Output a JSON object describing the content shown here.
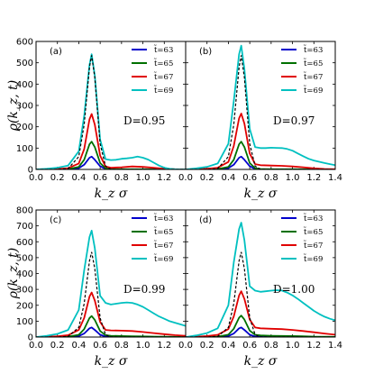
{
  "figure": {
    "ylabel": "ρ(k_z, t)",
    "xlabel": "k_z σ"
  },
  "chart_data": [
    {
      "panel": "(a)",
      "type": "line",
      "annotation": "D=0.95",
      "xlim": [
        0,
        1.4
      ],
      "ylim": [
        0,
        600
      ],
      "xticks": [
        0.0,
        0.2,
        0.4,
        0.6,
        0.8,
        1.0,
        1.2
      ],
      "yticks": [
        0,
        100,
        200,
        300,
        400,
        500,
        600
      ],
      "legend": "top-right",
      "series": [
        {
          "name": "t̃=63",
          "color": "#0000cc",
          "x": [
            0,
            0.1,
            0.2,
            0.3,
            0.4,
            0.45,
            0.5,
            0.52,
            0.55,
            0.6,
            0.65,
            0.7,
            0.8,
            0.9,
            1.0,
            1.1,
            1.2,
            1.3,
            1.4
          ],
          "values": [
            0,
            0,
            0,
            1,
            6,
            22,
            55,
            60,
            45,
            15,
            3,
            1,
            0,
            0,
            0,
            0,
            0,
            0,
            0
          ]
        },
        {
          "name": "t̃=65",
          "color": "#007000",
          "x": [
            0,
            0.1,
            0.2,
            0.3,
            0.4,
            0.45,
            0.5,
            0.52,
            0.55,
            0.6,
            0.65,
            0.7,
            0.8,
            0.9,
            1.0,
            1.1,
            1.2,
            1.3,
            1.4
          ],
          "values": [
            0,
            0,
            1,
            2,
            12,
            45,
            118,
            130,
            105,
            30,
            6,
            2,
            1,
            1,
            1,
            1,
            0,
            0,
            0
          ]
        },
        {
          "name": "t̃=67",
          "color": "#e00000",
          "x": [
            0,
            0.1,
            0.2,
            0.3,
            0.4,
            0.45,
            0.5,
            0.52,
            0.55,
            0.6,
            0.65,
            0.7,
            0.8,
            0.9,
            1.0,
            1.1,
            1.2,
            1.3,
            1.4
          ],
          "values": [
            0,
            0,
            2,
            6,
            28,
            95,
            235,
            260,
            210,
            65,
            14,
            8,
            10,
            14,
            12,
            8,
            3,
            1,
            0
          ]
        },
        {
          "name": "t̃=69",
          "color": "#00c0c0",
          "x": [
            0,
            0.1,
            0.2,
            0.3,
            0.4,
            0.45,
            0.5,
            0.52,
            0.55,
            0.6,
            0.65,
            0.7,
            0.75,
            0.8,
            0.85,
            0.9,
            0.95,
            1.0,
            1.05,
            1.1,
            1.15,
            1.2,
            1.25,
            1.3,
            1.35,
            1.4
          ],
          "values": [
            0,
            3,
            8,
            18,
            85,
            250,
            490,
            540,
            440,
            140,
            48,
            44,
            45,
            50,
            52,
            55,
            60,
            55,
            46,
            32,
            18,
            8,
            3,
            1,
            0,
            0
          ]
        }
      ],
      "reference": {
        "color": "#000000",
        "dashed": true,
        "x": [
          0,
          0.1,
          0.2,
          0.3,
          0.4,
          0.45,
          0.5,
          0.52,
          0.55,
          0.6,
          0.65,
          0.7,
          0.8,
          0.9,
          1.0,
          1.1,
          1.2,
          1.3,
          1.4
        ],
        "values": [
          0,
          0,
          0,
          4,
          60,
          210,
          480,
          535,
          430,
          120,
          15,
          1,
          0,
          0,
          0,
          0,
          0,
          0,
          0
        ]
      }
    },
    {
      "panel": "(b)",
      "type": "line",
      "annotation": "D=0.97",
      "xlim": [
        0,
        1.4
      ],
      "ylim": [
        0,
        600
      ],
      "xticks": [
        0.0,
        0.2,
        0.4,
        0.6,
        0.8,
        1.0,
        1.2,
        1.4
      ],
      "yticks": [
        0,
        100,
        200,
        300,
        400,
        500,
        600
      ],
      "legend": "top-right",
      "series": [
        {
          "name": "t̃=63",
          "color": "#0000cc",
          "x": [
            0,
            0.1,
            0.2,
            0.3,
            0.4,
            0.45,
            0.5,
            0.52,
            0.55,
            0.6,
            0.65,
            0.7,
            0.8,
            0.9,
            1.0,
            1.1,
            1.2,
            1.3,
            1.4
          ],
          "values": [
            0,
            0,
            0,
            1,
            6,
            22,
            55,
            60,
            45,
            15,
            3,
            1,
            0,
            0,
            0,
            0,
            0,
            0,
            0
          ]
        },
        {
          "name": "t̃=65",
          "color": "#007000",
          "x": [
            0,
            0.1,
            0.2,
            0.3,
            0.4,
            0.45,
            0.5,
            0.52,
            0.55,
            0.6,
            0.65,
            0.7,
            0.8,
            0.9,
            1.0,
            1.1,
            1.2,
            1.3,
            1.4
          ],
          "values": [
            0,
            0,
            1,
            2,
            12,
            45,
            118,
            130,
            105,
            30,
            6,
            2,
            1,
            1,
            1,
            1,
            0,
            0,
            0
          ]
        },
        {
          "name": "t̃=67",
          "color": "#e00000",
          "x": [
            0,
            0.1,
            0.2,
            0.3,
            0.4,
            0.45,
            0.5,
            0.52,
            0.55,
            0.6,
            0.65,
            0.7,
            0.8,
            0.9,
            1.0,
            1.1,
            1.2,
            1.3,
            1.4
          ],
          "values": [
            0,
            1,
            3,
            8,
            35,
            110,
            240,
            262,
            215,
            75,
            25,
            20,
            18,
            17,
            14,
            10,
            5,
            2,
            1
          ]
        },
        {
          "name": "t̃=69",
          "color": "#00c0c0",
          "x": [
            0,
            0.1,
            0.2,
            0.3,
            0.4,
            0.45,
            0.5,
            0.52,
            0.55,
            0.6,
            0.65,
            0.7,
            0.75,
            0.8,
            0.85,
            0.9,
            0.95,
            1.0,
            1.05,
            1.1,
            1.15,
            1.2,
            1.25,
            1.3,
            1.35,
            1.4
          ],
          "values": [
            0,
            5,
            12,
            28,
            120,
            320,
            540,
            580,
            470,
            190,
            105,
            100,
            100,
            102,
            101,
            100,
            96,
            88,
            75,
            62,
            50,
            42,
            36,
            30,
            25,
            20
          ]
        }
      ],
      "reference": {
        "color": "#000000",
        "dashed": true,
        "x": [
          0,
          0.1,
          0.2,
          0.3,
          0.4,
          0.45,
          0.5,
          0.52,
          0.55,
          0.6,
          0.65,
          0.7,
          0.8,
          0.9,
          1.0,
          1.1,
          1.2,
          1.3,
          1.4
        ],
        "values": [
          0,
          0,
          0,
          4,
          60,
          210,
          480,
          535,
          430,
          120,
          15,
          1,
          0,
          0,
          0,
          0,
          0,
          0,
          0
        ]
      }
    },
    {
      "panel": "(c)",
      "type": "line",
      "annotation": "D=0.99",
      "xlim": [
        0,
        1.4
      ],
      "ylim": [
        0,
        800
      ],
      "xticks": [
        0.0,
        0.2,
        0.4,
        0.6,
        0.8,
        1.0,
        1.2
      ],
      "yticks": [
        0,
        100,
        200,
        300,
        400,
        500,
        600,
        700,
        800
      ],
      "legend": "top-right",
      "series": [
        {
          "name": "t̃=63",
          "color": "#0000cc",
          "x": [
            0,
            0.1,
            0.2,
            0.3,
            0.4,
            0.45,
            0.5,
            0.52,
            0.55,
            0.6,
            0.65,
            0.7,
            0.8,
            0.9,
            1.0,
            1.1,
            1.2,
            1.3,
            1.4
          ],
          "values": [
            0,
            0,
            0,
            1,
            6,
            22,
            55,
            60,
            45,
            15,
            3,
            1,
            0,
            0,
            0,
            0,
            0,
            0,
            0
          ]
        },
        {
          "name": "t̃=65",
          "color": "#007000",
          "x": [
            0,
            0.1,
            0.2,
            0.3,
            0.4,
            0.45,
            0.5,
            0.52,
            0.55,
            0.6,
            0.65,
            0.7,
            0.8,
            0.9,
            1.0,
            1.1,
            1.2,
            1.3,
            1.4
          ],
          "values": [
            0,
            0,
            1,
            3,
            14,
            50,
            120,
            132,
            108,
            38,
            12,
            8,
            6,
            5,
            4,
            3,
            2,
            1,
            0
          ]
        },
        {
          "name": "t̃=67",
          "color": "#e00000",
          "x": [
            0,
            0.1,
            0.2,
            0.3,
            0.4,
            0.45,
            0.5,
            0.52,
            0.55,
            0.6,
            0.65,
            0.7,
            0.8,
            0.9,
            1.0,
            1.1,
            1.2,
            1.3,
            1.4
          ],
          "values": [
            0,
            2,
            5,
            12,
            45,
            120,
            255,
            280,
            230,
            95,
            45,
            42,
            40,
            38,
            32,
            25,
            18,
            12,
            8
          ]
        },
        {
          "name": "t̃=69",
          "color": "#00c0c0",
          "x": [
            0,
            0.1,
            0.2,
            0.3,
            0.4,
            0.45,
            0.5,
            0.52,
            0.55,
            0.6,
            0.65,
            0.7,
            0.75,
            0.8,
            0.85,
            0.9,
            0.95,
            1.0,
            1.05,
            1.1,
            1.15,
            1.2,
            1.25,
            1.3,
            1.35,
            1.4
          ],
          "values": [
            0,
            8,
            20,
            45,
            170,
            420,
            630,
            670,
            560,
            260,
            215,
            205,
            210,
            215,
            218,
            215,
            205,
            190,
            170,
            150,
            130,
            115,
            100,
            90,
            80,
            70
          ]
        }
      ],
      "reference": {
        "color": "#000000",
        "dashed": true,
        "x": [
          0,
          0.1,
          0.2,
          0.3,
          0.4,
          0.45,
          0.5,
          0.52,
          0.55,
          0.6,
          0.65,
          0.7,
          0.8,
          0.9,
          1.0,
          1.1,
          1.2,
          1.3,
          1.4
        ],
        "values": [
          0,
          0,
          0,
          4,
          60,
          210,
          480,
          535,
          430,
          120,
          15,
          1,
          0,
          0,
          0,
          0,
          0,
          0,
          0
        ]
      }
    },
    {
      "panel": "(d)",
      "type": "line",
      "annotation": "D=1.00",
      "xlim": [
        0,
        1.4
      ],
      "ylim": [
        0,
        800
      ],
      "xticks": [
        0.0,
        0.2,
        0.4,
        0.6,
        0.8,
        1.0,
        1.2,
        1.4
      ],
      "yticks": [
        0,
        100,
        200,
        300,
        400,
        500,
        600,
        700,
        800
      ],
      "legend": "top-right",
      "series": [
        {
          "name": "t̃=63",
          "color": "#0000cc",
          "x": [
            0,
            0.1,
            0.2,
            0.3,
            0.4,
            0.45,
            0.5,
            0.52,
            0.55,
            0.6,
            0.65,
            0.7,
            0.8,
            0.9,
            1.0,
            1.1,
            1.2,
            1.3,
            1.4
          ],
          "values": [
            0,
            0,
            0,
            1,
            6,
            22,
            55,
            60,
            45,
            15,
            3,
            1,
            0,
            0,
            0,
            0,
            0,
            0,
            0
          ]
        },
        {
          "name": "t̃=65",
          "color": "#007000",
          "x": [
            0,
            0.1,
            0.2,
            0.3,
            0.4,
            0.45,
            0.5,
            0.52,
            0.55,
            0.6,
            0.65,
            0.7,
            0.8,
            0.9,
            1.0,
            1.1,
            1.2,
            1.3,
            1.4
          ],
          "values": [
            0,
            0,
            1,
            3,
            15,
            52,
            122,
            135,
            110,
            40,
            14,
            10,
            8,
            7,
            6,
            5,
            3,
            2,
            1
          ]
        },
        {
          "name": "t̃=67",
          "color": "#e00000",
          "x": [
            0,
            0.1,
            0.2,
            0.3,
            0.4,
            0.45,
            0.5,
            0.52,
            0.55,
            0.6,
            0.65,
            0.7,
            0.8,
            0.9,
            1.0,
            1.1,
            1.2,
            1.3,
            1.4
          ],
          "values": [
            0,
            2,
            6,
            14,
            50,
            130,
            262,
            288,
            240,
            110,
            60,
            55,
            52,
            50,
            45,
            38,
            30,
            22,
            15
          ]
        },
        {
          "name": "t̃=69",
          "color": "#00c0c0",
          "x": [
            0,
            0.1,
            0.2,
            0.3,
            0.4,
            0.45,
            0.5,
            0.52,
            0.55,
            0.6,
            0.65,
            0.7,
            0.75,
            0.8,
            0.85,
            0.9,
            0.95,
            1.0,
            1.05,
            1.1,
            1.15,
            1.2,
            1.25,
            1.3,
            1.35,
            1.4
          ],
          "values": [
            0,
            10,
            25,
            55,
            200,
            470,
            680,
            720,
            610,
            320,
            292,
            285,
            288,
            292,
            295,
            293,
            280,
            262,
            240,
            215,
            190,
            165,
            145,
            128,
            115,
            105
          ]
        }
      ],
      "reference": {
        "color": "#000000",
        "dashed": true,
        "x": [
          0,
          0.1,
          0.2,
          0.3,
          0.4,
          0.45,
          0.5,
          0.52,
          0.55,
          0.6,
          0.65,
          0.7,
          0.8,
          0.9,
          1.0,
          1.1,
          1.2,
          1.3,
          1.4
        ],
        "values": [
          0,
          0,
          0,
          4,
          60,
          210,
          480,
          535,
          430,
          120,
          15,
          1,
          0,
          0,
          0,
          0,
          0,
          0,
          0
        ]
      }
    }
  ]
}
